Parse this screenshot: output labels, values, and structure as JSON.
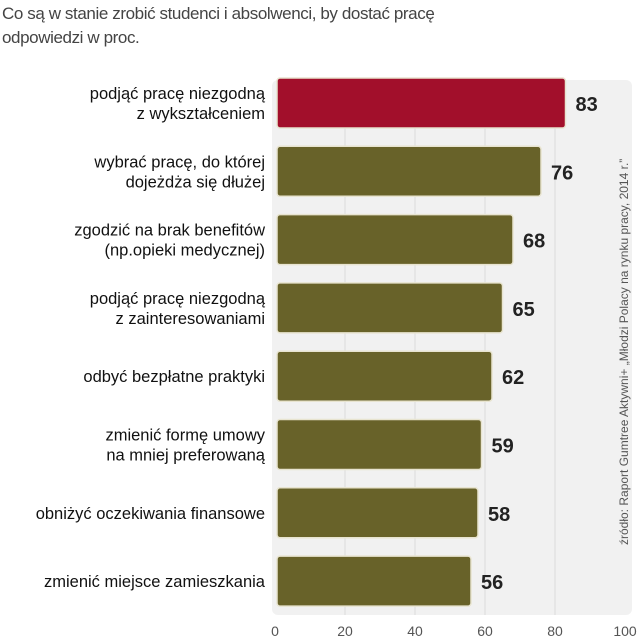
{
  "chart_data": {
    "type": "bar",
    "orientation": "horizontal",
    "title": "Co są w stanie zrobić studenci i absolwenci, by dostać pracę",
    "subtitle": "odpowiedzi w proc.",
    "categories": [
      [
        "podjąć pracę niezgodną",
        "z wykształceniem"
      ],
      [
        "wybrać pracę, do której",
        "dojeżdża się dłużej"
      ],
      [
        "zgodzić na brak benefitów",
        "(np.opieki medycznej)"
      ],
      [
        "podjąć pracę niezgodną",
        "z zainteresowaniami"
      ],
      [
        "odbyć bezpłatne praktyki"
      ],
      [
        "zmienić formę umowy",
        "na mniej preferowaną"
      ],
      [
        "obniżyć oczekiwania finansowe"
      ],
      [
        "zmienić miejsce zamieszkania"
      ]
    ],
    "values": [
      83,
      76,
      68,
      65,
      62,
      59,
      58,
      56
    ],
    "xlim": [
      0,
      100
    ],
    "xticks": [
      "0",
      "20",
      "40",
      "60",
      "80",
      "100"
    ],
    "grid": true,
    "source": "źródło: Raport Gumtree Aktywni+ „Młodzi Polacy na rynku pracy, 2014 r.”",
    "colors": {
      "highlight": "#a20f2b",
      "bar": "#686229",
      "panel": "#f1f1f1",
      "grid": "#dcdcdc"
    }
  }
}
